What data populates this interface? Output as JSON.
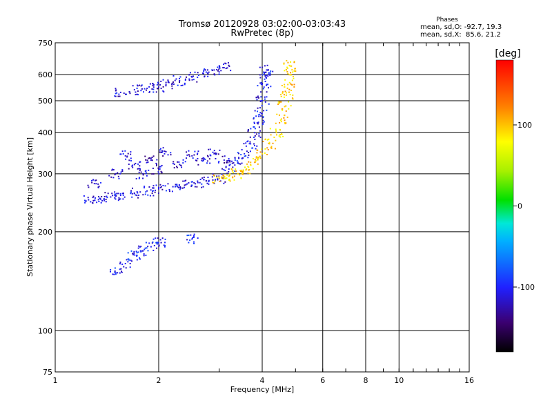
{
  "chart_data": {
    "type": "scatter",
    "title": "Tromsø 20120928 03:02:00-03:03:43",
    "subtitle": "RwPretec (8p)",
    "xlabel": "Frequency [MHz]",
    "ylabel": "Stationary phase Virtual Height [km]",
    "x_scale": "log",
    "y_scale": "log",
    "xlim": [
      1,
      16
    ],
    "ylim": [
      75,
      750
    ],
    "x_ticks": [
      1,
      2,
      4,
      6,
      8,
      10,
      16
    ],
    "y_ticks": [
      75,
      100,
      200,
      300,
      400,
      500,
      600,
      750
    ],
    "grid": true,
    "stats": {
      "heading": "Phases",
      "line_o": "mean, sd,O: -92.7, 19.3",
      "line_x": "mean, sd,X:  85.6, 21.2"
    },
    "colorbar": {
      "label": "[deg]",
      "range": [
        -180,
        180
      ],
      "ticks": [
        -100,
        0,
        100
      ]
    },
    "series": [
      {
        "trace": "o-mode F-layer lower trace",
        "phase_deg": -110,
        "points": [
          [
            1.25,
            250
          ],
          [
            1.35,
            252
          ],
          [
            1.45,
            255
          ],
          [
            1.55,
            258
          ],
          [
            1.7,
            262
          ],
          [
            1.85,
            266
          ],
          [
            2.0,
            270
          ],
          [
            2.2,
            274
          ],
          [
            2.4,
            278
          ],
          [
            2.6,
            282
          ],
          [
            2.8,
            286
          ],
          [
            3.0,
            290
          ]
        ]
      },
      {
        "trace": "o-mode F-layer spread",
        "phase_deg": -115,
        "points": [
          [
            1.3,
            280
          ],
          [
            1.5,
            300
          ],
          [
            1.6,
            340
          ],
          [
            1.7,
            320
          ],
          [
            1.8,
            300
          ],
          [
            1.9,
            330
          ],
          [
            2.0,
            310
          ],
          [
            2.1,
            350
          ],
          [
            2.3,
            320
          ],
          [
            2.5,
            340
          ],
          [
            2.7,
            330
          ],
          [
            2.9,
            345
          ],
          [
            3.1,
            330
          ]
        ]
      },
      {
        "trace": "o-mode steep branch",
        "phase_deg": -105,
        "points": [
          [
            3.2,
            310
          ],
          [
            3.4,
            325
          ],
          [
            3.55,
            345
          ],
          [
            3.7,
            370
          ],
          [
            3.8,
            400
          ],
          [
            3.9,
            430
          ],
          [
            3.95,
            460
          ],
          [
            4.0,
            500
          ],
          [
            4.05,
            550
          ],
          [
            4.1,
            590
          ],
          [
            4.12,
            620
          ]
        ]
      },
      {
        "trace": "o-mode upper echoes",
        "phase_deg": -110,
        "points": [
          [
            1.55,
            530
          ],
          [
            1.7,
            540
          ],
          [
            1.85,
            545
          ],
          [
            2.0,
            550
          ],
          [
            2.1,
            560
          ],
          [
            2.3,
            575
          ],
          [
            2.5,
            590
          ],
          [
            2.7,
            605
          ],
          [
            2.9,
            620
          ],
          [
            3.1,
            630
          ]
        ]
      },
      {
        "trace": "x-mode trace",
        "phase_deg": 95,
        "points": [
          [
            3.0,
            290
          ],
          [
            3.2,
            295
          ],
          [
            3.4,
            300
          ],
          [
            3.6,
            310
          ],
          [
            3.8,
            325
          ],
          [
            4.0,
            345
          ],
          [
            4.2,
            370
          ],
          [
            4.4,
            400
          ],
          [
            4.55,
            440
          ],
          [
            4.65,
            480
          ],
          [
            4.7,
            520
          ],
          [
            4.75,
            560
          ],
          [
            4.8,
            600
          ],
          [
            4.8,
            640
          ]
        ]
      },
      {
        "trace": "E-region echoes",
        "phase_deg": -100,
        "points": [
          [
            1.5,
            150
          ],
          [
            1.6,
            160
          ],
          [
            1.7,
            170
          ],
          [
            1.8,
            175
          ],
          [
            1.9,
            180
          ],
          [
            2.0,
            185
          ],
          [
            2.5,
            190
          ]
        ]
      }
    ]
  }
}
